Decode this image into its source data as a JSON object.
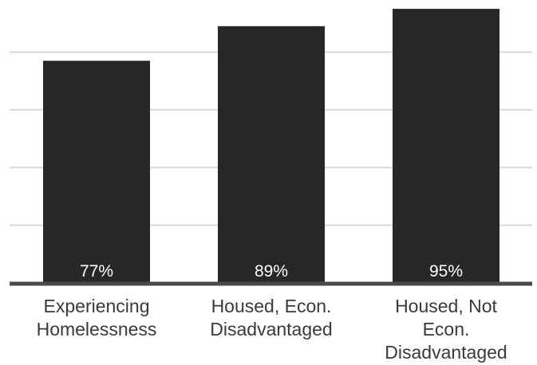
{
  "chart_data": {
    "type": "bar",
    "categories": [
      [
        "Experiencing",
        "Homelessness"
      ],
      [
        "Housed, Econ.",
        "Disadvantaged"
      ],
      [
        "Housed, Not",
        "Econ.",
        "Disadvantaged"
      ]
    ],
    "values": [
      77,
      89,
      95
    ],
    "value_labels": [
      "77%",
      "89%",
      "95%"
    ],
    "title": "",
    "xlabel": "",
    "ylabel": "",
    "ylim": [
      0,
      100
    ],
    "grid": true,
    "legend": "none",
    "colors": {
      "bar": "#262828",
      "bar_label": "#ffffff",
      "gridline": "#d9d9d9",
      "axis": "#4a4a4a",
      "category_text": "#3a3a3a"
    }
  }
}
